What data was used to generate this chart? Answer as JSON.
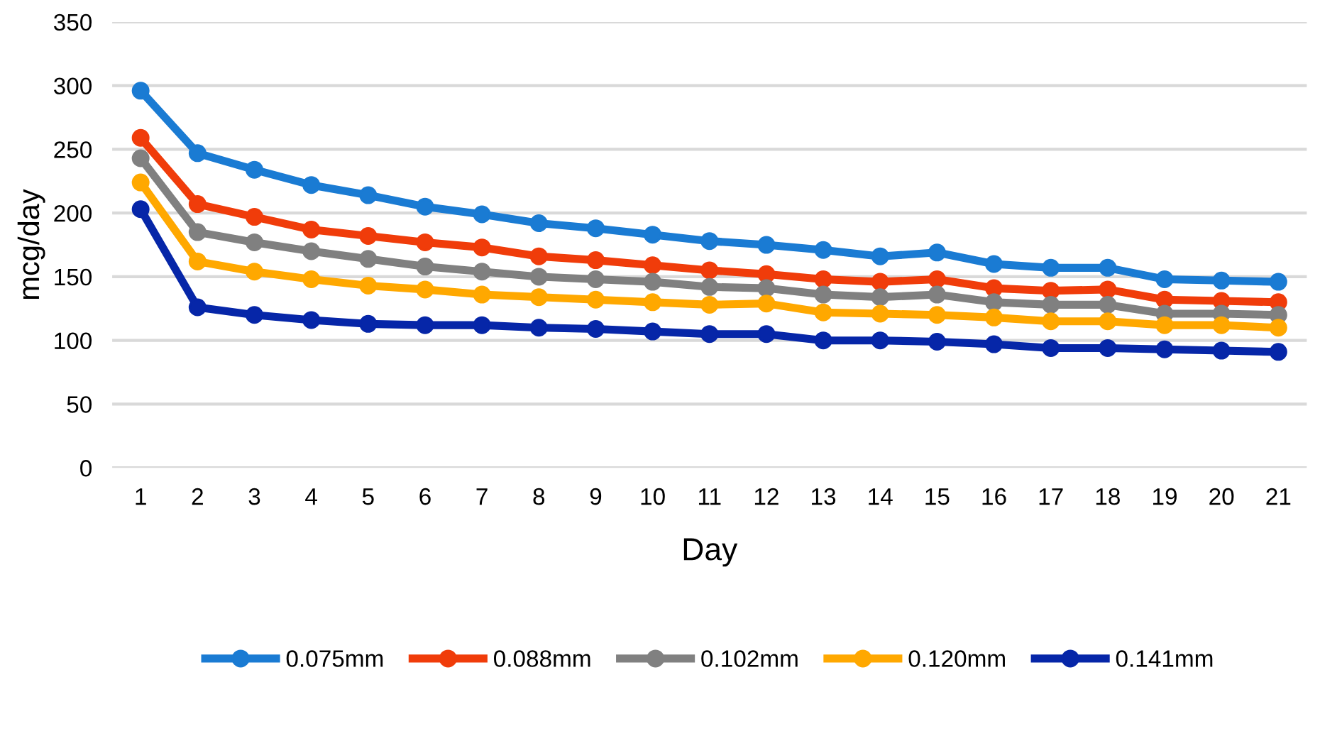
{
  "chart_data": {
    "type": "line",
    "xlabel": "Day",
    "ylabel": "mcg/day",
    "categories": [
      "1",
      "2",
      "3",
      "4",
      "5",
      "6",
      "7",
      "8",
      "9",
      "10",
      "11",
      "12",
      "13",
      "14",
      "15",
      "16",
      "17",
      "18",
      "19",
      "20",
      "21"
    ],
    "series": [
      {
        "name": "0.075mm",
        "color": "#1a7bd3",
        "values": [
          296,
          247,
          234,
          222,
          214,
          205,
          199,
          192,
          188,
          183,
          178,
          175,
          171,
          166,
          169,
          160,
          157,
          157,
          148,
          147,
          146
        ]
      },
      {
        "name": "0.088mm",
        "color": "#f03c0a",
        "values": [
          259,
          207,
          197,
          187,
          182,
          177,
          173,
          166,
          163,
          159,
          155,
          152,
          148,
          146,
          148,
          141,
          139,
          140,
          132,
          131,
          130
        ]
      },
      {
        "name": "0.102mm",
        "color": "#808080",
        "values": [
          243,
          185,
          177,
          170,
          164,
          158,
          154,
          150,
          148,
          146,
          142,
          141,
          136,
          134,
          136,
          130,
          128,
          128,
          121,
          121,
          120
        ]
      },
      {
        "name": "0.120mm",
        "color": "#ffa800",
        "values": [
          224,
          162,
          154,
          148,
          143,
          140,
          136,
          134,
          132,
          130,
          128,
          129,
          122,
          121,
          120,
          118,
          115,
          115,
          112,
          112,
          110
        ]
      },
      {
        "name": "0.141mm",
        "color": "#0626a8",
        "values": [
          203,
          126,
          120,
          116,
          113,
          112,
          112,
          110,
          109,
          107,
          105,
          105,
          100,
          100,
          99,
          97,
          94,
          94,
          93,
          92,
          91
        ]
      }
    ],
    "ylim": [
      0,
      350
    ],
    "yticks": [
      0,
      50,
      100,
      150,
      200,
      250,
      300,
      350
    ],
    "grid": "y",
    "legend": "bottom",
    "marker": "circle",
    "line_style": "solid"
  }
}
